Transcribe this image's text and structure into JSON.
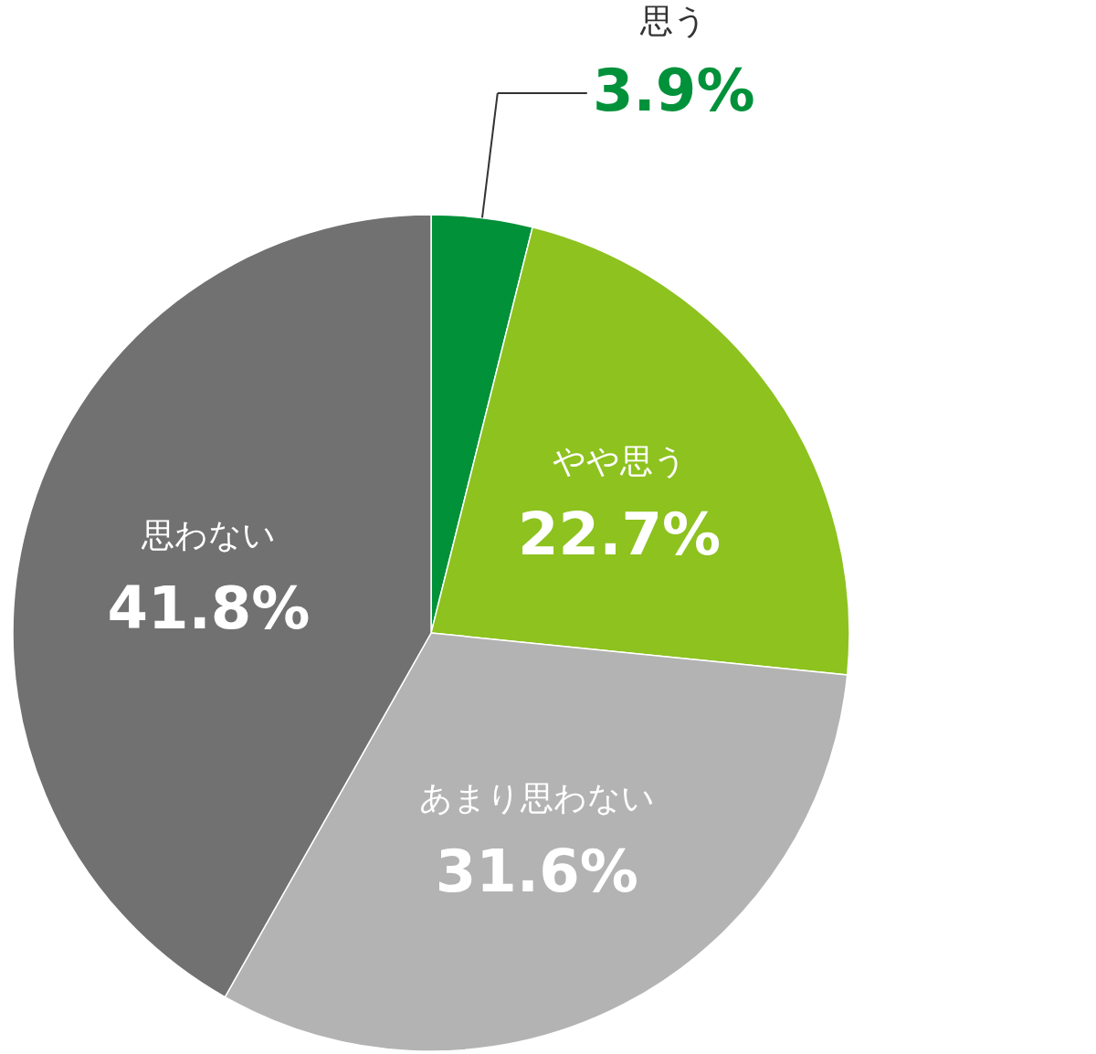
{
  "chart_data": {
    "type": "pie",
    "categories": [
      "思う",
      "やや思う",
      "あまり思わない",
      "思わない"
    ],
    "values": [
      3.9,
      22.7,
      31.6,
      41.8
    ],
    "colors": [
      "#009139",
      "#8dc21f",
      "#b3b3b3",
      "#717171"
    ],
    "value_labels": [
      "3.9%",
      "22.7%",
      "31.6%",
      "41.8%"
    ]
  }
}
